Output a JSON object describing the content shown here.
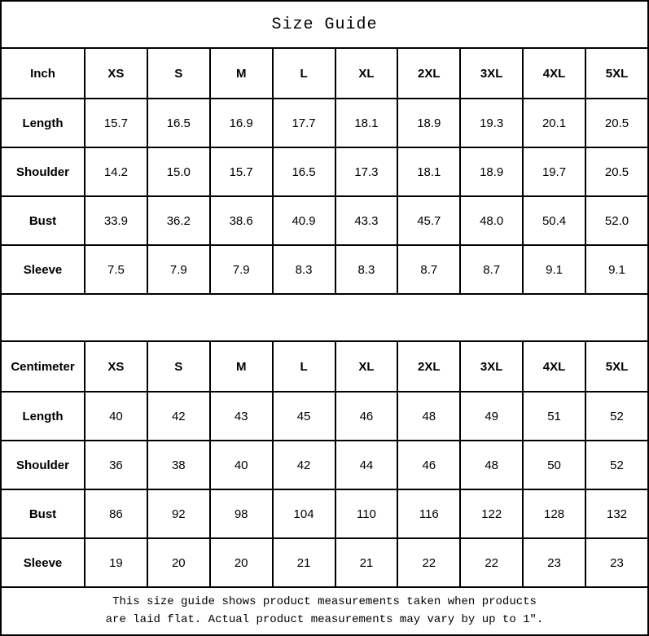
{
  "title": "Size Guide",
  "inch": {
    "unit": "Inch",
    "sizes": [
      "XS",
      "S",
      "M",
      "L",
      "XL",
      "2XL",
      "3XL",
      "4XL",
      "5XL"
    ],
    "rows": [
      {
        "label": "Length",
        "values": [
          "15.7",
          "16.5",
          "16.9",
          "17.7",
          "18.1",
          "18.9",
          "19.3",
          "20.1",
          "20.5"
        ]
      },
      {
        "label": "Shoulder",
        "values": [
          "14.2",
          "15.0",
          "15.7",
          "16.5",
          "17.3",
          "18.1",
          "18.9",
          "19.7",
          "20.5"
        ]
      },
      {
        "label": "Bust",
        "values": [
          "33.9",
          "36.2",
          "38.6",
          "40.9",
          "43.3",
          "45.7",
          "48.0",
          "50.4",
          "52.0"
        ]
      },
      {
        "label": "Sleeve",
        "values": [
          "7.5",
          "7.9",
          "7.9",
          "8.3",
          "8.3",
          "8.7",
          "8.7",
          "9.1",
          "9.1"
        ]
      }
    ]
  },
  "cm": {
    "unit": "Centimeter",
    "sizes": [
      "XS",
      "S",
      "M",
      "L",
      "XL",
      "2XL",
      "3XL",
      "4XL",
      "5XL"
    ],
    "rows": [
      {
        "label": "Length",
        "values": [
          "40",
          "42",
          "43",
          "45",
          "46",
          "48",
          "49",
          "51",
          "52"
        ]
      },
      {
        "label": "Shoulder",
        "values": [
          "36",
          "38",
          "40",
          "42",
          "44",
          "46",
          "48",
          "50",
          "52"
        ]
      },
      {
        "label": "Bust",
        "values": [
          "86",
          "92",
          "98",
          "104",
          "110",
          "116",
          "122",
          "128",
          "132"
        ]
      },
      {
        "label": "Sleeve",
        "values": [
          "19",
          "20",
          "20",
          "21",
          "21",
          "22",
          "22",
          "23",
          "23"
        ]
      }
    ]
  },
  "footer": {
    "line1": "This size guide shows product measurements taken when products",
    "line2": "are laid flat. Actual product measurements may vary by up to 1″."
  }
}
